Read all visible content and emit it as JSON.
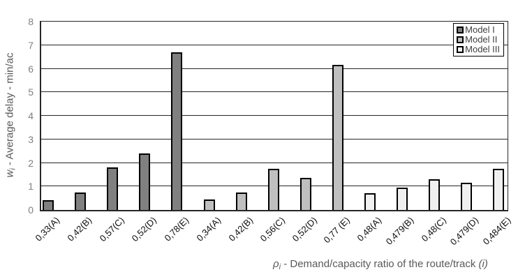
{
  "chart": {
    "y_axis": {
      "title": {
        "symbol": "w",
        "subscript": "i",
        "text": " - Average delay - min/ac"
      },
      "ticks": [
        "0",
        "1",
        "2",
        "3",
        "4",
        "5",
        "6",
        "7",
        "8"
      ],
      "range": [
        0,
        8
      ]
    },
    "x_axis": {
      "title": {
        "symbol": "ρ",
        "subscript": "i",
        "text": " - Demand/capacity ratio of the route/track ",
        "suffix": "(i)"
      }
    },
    "colors": {
      "model1_fill": "#808080",
      "model2_fill": "#bfbfbf",
      "model3_fill": "#f0f0f0",
      "bar_border": "#000000",
      "gridline": "#262626",
      "tick_text": "#808080",
      "axis_title_text": "#595959"
    }
  },
  "chart_data": {
    "type": "bar",
    "title": "",
    "xlabel": "ρi - Demand/capacity ratio of the route/track (i)",
    "ylabel": "wi - Average delay - min/ac",
    "ylim": [
      0,
      8
    ],
    "grid": true,
    "legend_position": "top-right",
    "categories": [
      "0,33(A)",
      "0,42(B)",
      "0,57(C)",
      "0,52(D)",
      "0,78(E)",
      "0,34(A)",
      "0,42(B)",
      "0,56(C)",
      "0,52(D)",
      "0,77 (E)",
      "0,48(A)",
      "0,479(B)",
      "0,48(C)",
      "0,479(D)",
      "0,484(E)"
    ],
    "series": [
      {
        "name": "Model I",
        "color": "#808080",
        "category_indices": [
          0,
          1,
          2,
          3,
          4
        ],
        "values": [
          0.4,
          0.75,
          1.8,
          2.4,
          6.7
        ]
      },
      {
        "name": "Model II",
        "color": "#bfbfbf",
        "category_indices": [
          5,
          6,
          7,
          8,
          9
        ],
        "values": [
          0.45,
          0.75,
          1.75,
          1.35,
          6.15
        ]
      },
      {
        "name": "Model III",
        "color": "#f0f0f0",
        "category_indices": [
          10,
          11,
          12,
          13,
          14
        ],
        "values": [
          0.7,
          0.95,
          1.3,
          1.15,
          1.75
        ]
      }
    ]
  }
}
